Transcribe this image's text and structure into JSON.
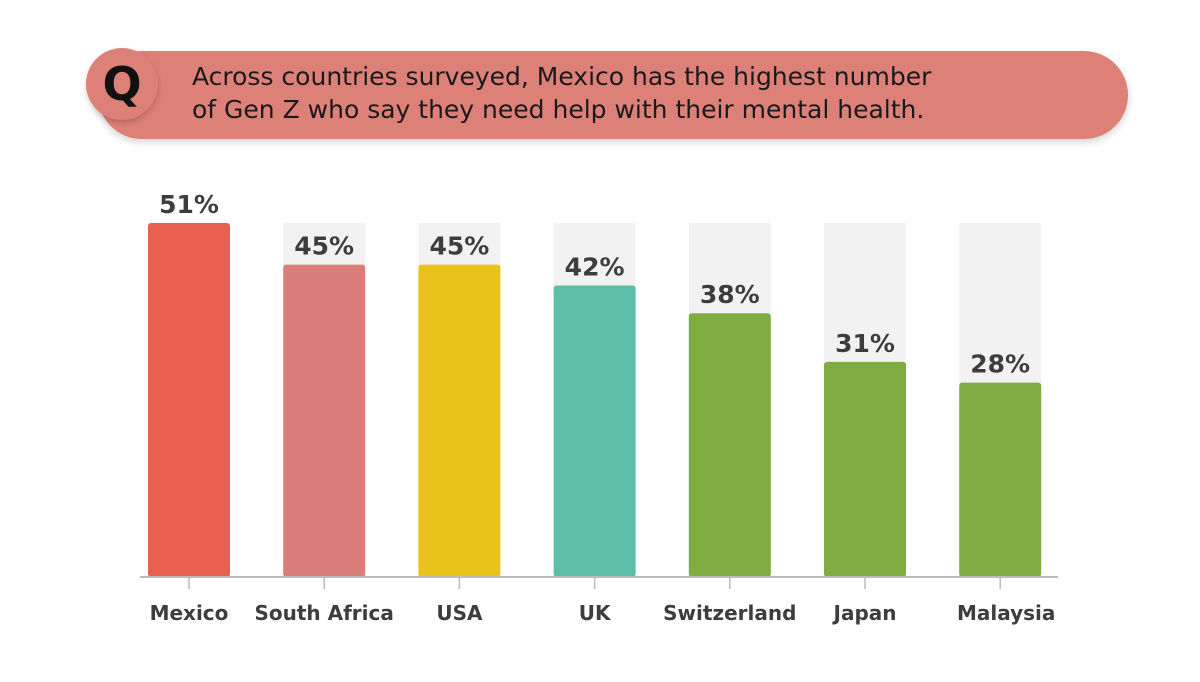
{
  "question": {
    "badge": "Q",
    "line1": "Across countries surveyed, Mexico has the highest number",
    "line2": "of Gen Z who say they need help with their mental health."
  },
  "colors": {
    "banner": "#dd8078",
    "q_circle": "#dd8078",
    "track": "#f2f2f2",
    "axis": "#bbbbbb"
  },
  "chart_data": {
    "type": "bar",
    "categories": [
      "Mexico",
      "South Africa",
      "USA",
      "UK",
      "Switzerland",
      "Japan",
      "Malaysia"
    ],
    "values": [
      51,
      45,
      45,
      42,
      38,
      31,
      28
    ],
    "value_labels": [
      "51%",
      "45%",
      "45%",
      "42%",
      "38%",
      "31%",
      "28%"
    ],
    "bar_colors": [
      "#e95f50",
      "#d97e79",
      "#ebc21c",
      "#5cbfa9",
      "#80ad42",
      "#80ad42",
      "#80ad42"
    ],
    "ylim": [
      0,
      51
    ],
    "grid": false,
    "title": "",
    "xlabel": "",
    "ylabel": ""
  }
}
